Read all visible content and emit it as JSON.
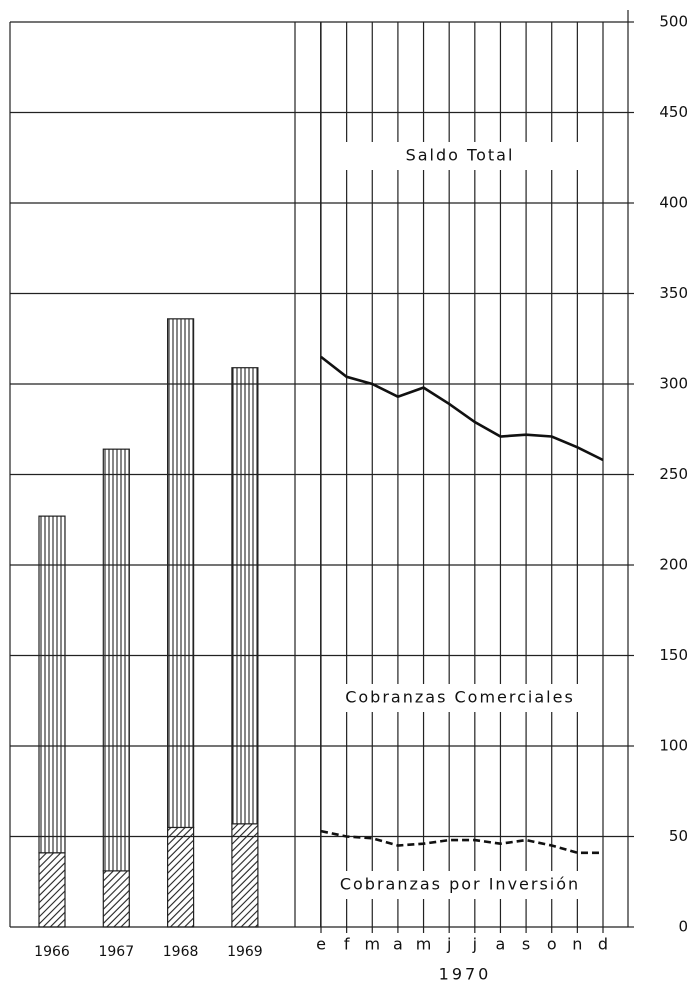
{
  "chart_data": [
    {
      "type": "bar",
      "stacked": true,
      "categories": [
        "1966",
        "1967",
        "1968",
        "1969"
      ],
      "series": [
        {
          "color": "#222",
          "hatch": "diagonal",
          "values": [
            41,
            31,
            55,
            57
          ]
        },
        {
          "color": "#222",
          "hatch": "vertical",
          "values": [
            186,
            233,
            281,
            252
          ]
        }
      ],
      "ylim": [
        0,
        500
      ]
    },
    {
      "type": "line",
      "categories": [
        "e",
        "f",
        "m",
        "a",
        "m",
        "j",
        "j",
        "a",
        "s",
        "o",
        "n",
        "d"
      ],
      "xlabel": "1970",
      "series": [
        {
          "name": "Saldo Total",
          "color": "#111",
          "dash": false,
          "values": [
            315,
            304,
            300,
            293,
            298,
            289,
            279,
            271,
            272,
            271,
            265,
            258
          ]
        },
        {
          "name": "Cobranzas por Inversión",
          "color": "#111",
          "dash": true,
          "values": [
            53,
            50,
            49,
            45,
            46,
            48,
            48,
            46,
            48,
            45,
            41,
            41
          ]
        }
      ],
      "annotations": [
        "Cobranzas Comerciales"
      ],
      "ylim": [
        0,
        500
      ],
      "yticks": [
        0,
        50,
        100,
        150,
        200,
        250,
        300,
        350,
        400,
        450,
        500
      ],
      "grid": true
    }
  ]
}
